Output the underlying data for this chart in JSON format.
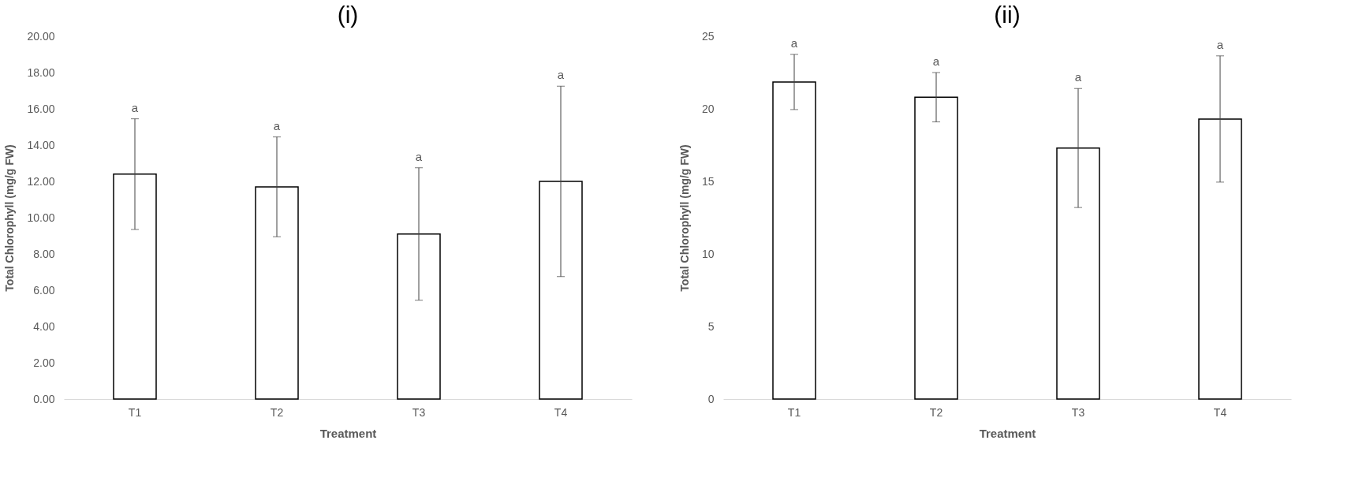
{
  "chart_data": [
    {
      "type": "bar",
      "title": "(i)",
      "xlabel": "Treatment",
      "ylabel": "Total Chlorophyll (mg/g FW)",
      "categories": [
        "T1",
        "T2",
        "T3",
        "T4"
      ],
      "series": [
        {
          "color": "#ffffff",
          "values": [
            12.4,
            11.7,
            9.1,
            12.0
          ],
          "errors": [
            3.05,
            2.75,
            3.65,
            5.25
          ]
        }
      ],
      "ylim": [
        0,
        20
      ],
      "yticks": [
        {
          "value": 0,
          "label": "0.00"
        },
        {
          "value": 2,
          "label": "2.00"
        },
        {
          "value": 4,
          "label": "4.00"
        },
        {
          "value": 6,
          "label": "6.00"
        },
        {
          "value": 8,
          "label": "8.00"
        },
        {
          "value": 10,
          "label": "10.00"
        },
        {
          "value": 12,
          "label": "12.00"
        },
        {
          "value": 14,
          "label": "14.00"
        },
        {
          "value": 16,
          "label": "16.00"
        },
        {
          "value": 18,
          "label": "18.00"
        },
        {
          "value": 20,
          "label": "20.00"
        }
      ],
      "annotations": [
        {
          "text": "a",
          "x": "T1",
          "y": 15.45
        },
        {
          "text": "a",
          "x": "T2",
          "y": 14.45
        },
        {
          "text": "a",
          "x": "T3",
          "y": 12.75
        },
        {
          "text": "a",
          "x": "T4",
          "y": 17.25
        }
      ],
      "grid": false
    },
    {
      "type": "bar",
      "title": "(ii)",
      "xlabel": "Treatment",
      "ylabel": "Total Chlorophyll (mg/g FW)",
      "categories": [
        "T1",
        "T2",
        "T3",
        "T4"
      ],
      "series": [
        {
          "color": "#ffffff",
          "values": [
            21.85,
            20.8,
            17.3,
            19.3
          ],
          "errors": [
            1.9,
            1.7,
            4.1,
            4.35
          ]
        }
      ],
      "ylim": [
        0,
        25
      ],
      "yticks": [
        0,
        5,
        10,
        15,
        20,
        25
      ],
      "annotations": [
        {
          "text": "a",
          "x": "T1",
          "y": 23.75
        },
        {
          "text": "a",
          "x": "T2",
          "y": 22.5
        },
        {
          "text": "a",
          "x": "T3",
          "y": 21.4
        },
        {
          "text": "a",
          "x": "T4",
          "y": 23.65
        }
      ],
      "grid": false
    }
  ]
}
